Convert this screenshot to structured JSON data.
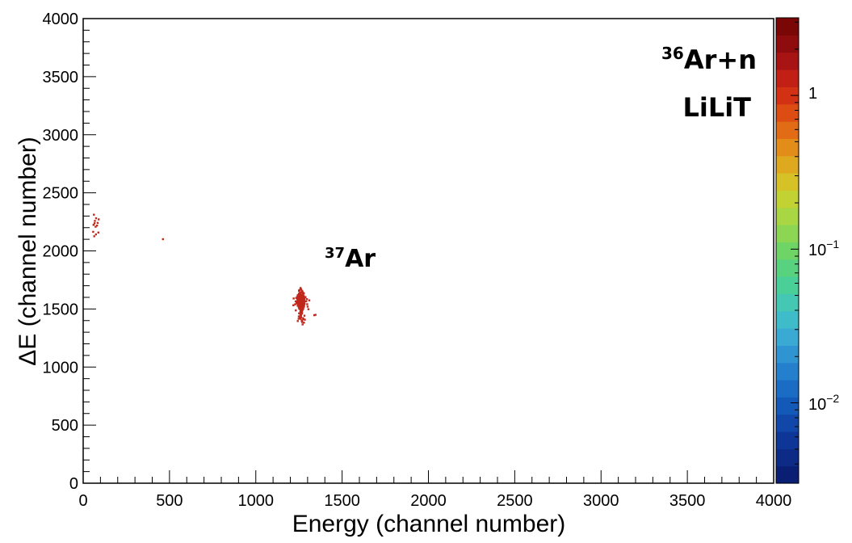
{
  "chart_data": {
    "type": "scatter",
    "title": "",
    "xlabel": "Energy (channel number)",
    "ylabel": "ΔE (channel number)",
    "xlim": [
      0,
      4000
    ],
    "ylim": [
      0,
      4000
    ],
    "x_ticks": [
      "0",
      "500",
      "1000",
      "1500",
      "2000",
      "2500",
      "3000",
      "3500",
      "4000"
    ],
    "y_ticks": [
      "0",
      "500",
      "1000",
      "1500",
      "2000",
      "2500",
      "3000",
      "3500",
      "4000"
    ],
    "grid": false,
    "legend": "none",
    "annotations": {
      "reaction_label": {
        "base": "Ar+n",
        "superscript": "36"
      },
      "facility_label": "LiLiT",
      "peak_label": {
        "base": "Ar",
        "superscript": "37"
      }
    },
    "colorbar": {
      "scale": "log",
      "range": [
        0.003,
        3.2
      ],
      "labels": [
        {
          "text": "1",
          "superscript": ""
        },
        {
          "text": "10",
          "superscript": "−1"
        },
        {
          "text": "10",
          "superscript": "−2"
        }
      ],
      "colors": [
        "#0a1f73",
        "#0c2a86",
        "#0e3697",
        "#1047a8",
        "#1259b8",
        "#1a6cc5",
        "#2480cd",
        "#2f95d2",
        "#3aaad4",
        "#3fbcc9",
        "#44c7b3",
        "#4bcf99",
        "#58d27e",
        "#6fd466",
        "#8dd653",
        "#a9d643",
        "#c3d233",
        "#d6c126",
        "#dea81f",
        "#e28c19",
        "#e26b15",
        "#dd4c13",
        "#d23114",
        "#c21f15",
        "#a81414",
        "#8f0c0e",
        "#7a0606"
      ]
    },
    "series": [
      {
        "marker_color": "#c0281c",
        "points": [
          [
            1258,
            1552
          ],
          [
            1262,
            1578
          ],
          [
            1270,
            1540
          ],
          [
            1247,
            1563
          ],
          [
            1276,
            1598
          ],
          [
            1255,
            1517
          ],
          [
            1265,
            1620
          ],
          [
            1240,
            1589
          ],
          [
            1280,
            1571
          ],
          [
            1250,
            1605
          ],
          [
            1268,
            1498
          ],
          [
            1244,
            1530
          ],
          [
            1273,
            1556
          ],
          [
            1261,
            1641
          ],
          [
            1252,
            1583
          ],
          [
            1278,
            1525
          ],
          [
            1236,
            1548
          ],
          [
            1266,
            1568
          ],
          [
            1257,
            1612
          ],
          [
            1271,
            1492
          ],
          [
            1249,
            1627
          ],
          [
            1283,
            1545
          ],
          [
            1263,
            1594
          ],
          [
            1254,
            1536
          ],
          [
            1242,
            1572
          ],
          [
            1275,
            1631
          ],
          [
            1260,
            1509
          ],
          [
            1269,
            1585
          ],
          [
            1246,
            1558
          ],
          [
            1279,
            1602
          ],
          [
            1256,
            1665
          ],
          [
            1264,
            1482
          ],
          [
            1251,
            1544
          ],
          [
            1272,
            1576
          ],
          [
            1259,
            1521
          ],
          [
            1245,
            1614
          ],
          [
            1281,
            1561
          ],
          [
            1267,
            1650
          ],
          [
            1253,
            1593
          ],
          [
            1274,
            1505
          ],
          [
            1238,
            1566
          ],
          [
            1262,
            1533
          ],
          [
            1270,
            1608
          ],
          [
            1248,
            1579
          ],
          [
            1258,
            1474
          ],
          [
            1277,
            1587
          ],
          [
            1255,
            1639
          ],
          [
            1266,
            1551
          ],
          [
            1243,
            1527
          ],
          [
            1273,
            1620
          ],
          [
            1261,
            1562
          ],
          [
            1252,
            1501
          ],
          [
            1280,
            1534
          ],
          [
            1265,
            1591
          ],
          [
            1250,
            1656
          ],
          [
            1269,
            1515
          ],
          [
            1257,
            1606
          ],
          [
            1276,
            1569
          ],
          [
            1244,
            1595
          ],
          [
            1263,
            1539
          ],
          [
            1254,
            1580
          ],
          [
            1271,
            1645
          ],
          [
            1260,
            1487
          ],
          [
            1247,
            1555
          ],
          [
            1278,
            1611
          ],
          [
            1266,
            1527
          ],
          [
            1256,
            1573
          ],
          [
            1273,
            1597
          ],
          [
            1252,
            1628
          ],
          [
            1264,
            1546
          ],
          [
            1259,
            1681
          ],
          [
            1268,
            1463
          ],
          [
            1245,
            1542
          ],
          [
            1275,
            1560
          ],
          [
            1262,
            1615
          ],
          [
            1249,
            1512
          ],
          [
            1281,
            1583
          ],
          [
            1258,
            1599
          ],
          [
            1267,
            1535
          ],
          [
            1253,
            1565
          ],
          [
            1240,
            1604
          ],
          [
            1272,
            1548
          ],
          [
            1255,
            1523
          ],
          [
            1277,
            1636
          ],
          [
            1261,
            1574
          ],
          [
            1250,
            1589
          ],
          [
            1270,
            1506
          ],
          [
            1264,
            1557
          ],
          [
            1243,
            1619
          ],
          [
            1274,
            1584
          ],
          [
            1257,
            1542
          ],
          [
            1266,
            1566
          ],
          [
            1251,
            1633
          ],
          [
            1279,
            1519
          ],
          [
            1259,
            1595
          ],
          [
            1268,
            1552
          ],
          [
            1246,
            1577
          ],
          [
            1276,
            1607
          ],
          [
            1262,
            1449
          ],
          [
            1254,
            1560
          ],
          [
            1271,
            1586
          ],
          [
            1248,
            1528
          ],
          [
            1263,
            1670
          ],
          [
            1280,
            1571
          ],
          [
            1256,
            1608
          ],
          [
            1269,
            1537
          ],
          [
            1252,
            1591
          ],
          [
            1273,
            1558
          ],
          [
            1260,
            1517
          ],
          [
            1265,
            1623
          ],
          [
            1244,
            1569
          ],
          [
            1277,
            1545
          ],
          [
            1258,
            1580
          ],
          [
            1267,
            1495
          ],
          [
            1250,
            1601
          ],
          [
            1274,
            1636
          ],
          [
            1261,
            1563
          ],
          [
            1255,
            1531
          ],
          [
            1270,
            1575
          ],
          [
            1247,
            1552
          ],
          [
            1264,
            1612
          ],
          [
            1282,
            1588
          ],
          [
            1253,
            1540
          ],
          [
            1268,
            1479
          ],
          [
            1259,
            1596
          ],
          [
            1241,
            1566
          ],
          [
            1276,
            1524
          ],
          [
            1262,
            1644
          ],
          [
            1251,
            1578
          ],
          [
            1272,
            1549
          ],
          [
            1257,
            1511
          ],
          [
            1266,
            1603
          ],
          [
            1249,
            1584
          ],
          [
            1279,
            1563
          ],
          [
            1260,
            1626
          ],
          [
            1254,
            1535
          ],
          [
            1269,
            1571
          ],
          [
            1245,
            1598
          ],
          [
            1275,
            1501
          ],
          [
            1263,
            1556
          ],
          [
            1252,
            1662
          ],
          [
            1270,
            1582
          ],
          [
            1258,
            1547
          ],
          [
            1283,
            1600
          ],
          [
            1265,
            1520
          ],
          [
            1248,
            1567
          ],
          [
            1273,
            1615
          ],
          [
            1256,
            1591
          ],
          [
            1261,
            1469
          ],
          [
            1267,
            1543
          ],
          [
            1243,
            1579
          ],
          [
            1278,
            1634
          ],
          [
            1259,
            1559
          ],
          [
            1250,
            1527
          ],
          [
            1271,
            1593
          ],
          [
            1262,
            1608
          ],
          [
            1254,
            1566
          ],
          [
            1276,
            1538
          ],
          [
            1264,
            1574
          ],
          [
            1247,
            1615
          ],
          [
            1269,
            1656
          ],
          [
            1257,
            1498
          ],
          [
            1281,
            1581
          ],
          [
            1260,
            1550
          ],
          [
            1266,
            1599
          ],
          [
            1253,
            1572
          ],
          [
            1274,
            1528
          ],
          [
            1239,
            1553
          ],
          [
            1263,
            1588
          ],
          [
            1268,
            1621
          ],
          [
            1251,
            1543
          ],
          [
            1277,
            1562
          ],
          [
            1258,
            1606
          ],
          [
            1265,
            1513
          ],
          [
            1246,
            1590
          ],
          [
            1272,
            1575
          ],
          [
            1261,
            1441
          ],
          [
            1255,
            1631
          ],
          [
            1270,
            1556
          ],
          [
            1262,
            1597
          ],
          [
            1260,
            1415
          ],
          [
            1274,
            1421
          ],
          [
            1249,
            1436
          ],
          [
            1279,
            1382
          ],
          [
            1266,
            1402
          ],
          [
            1243,
            1396
          ],
          [
            1282,
            1442
          ],
          [
            1264,
            1455
          ],
          [
            1255,
            1427
          ],
          [
            1271,
            1367
          ],
          [
            1269,
            1388
          ],
          [
            1251,
            1462
          ],
          [
            1276,
            1410
          ],
          [
            1262,
            1429
          ],
          [
            1284,
            1408
          ],
          [
            1258,
            1450
          ],
          [
            1248,
            1416
          ],
          [
            1267,
            1395
          ],
          [
            1292,
            1566
          ],
          [
            1298,
            1541
          ],
          [
            1288,
            1602
          ],
          [
            1231,
            1565
          ],
          [
            1296,
            1585
          ],
          [
            1228,
            1540
          ],
          [
            1300,
            1520
          ],
          [
            1234,
            1595
          ],
          [
            1346,
            1450
          ],
          [
            1339,
            1446
          ],
          [
            1218,
            1532
          ],
          [
            1310,
            1574
          ],
          [
            1219,
            1590
          ],
          [
            1305,
            1498
          ],
          [
            1232,
            1488
          ],
          [
            62,
            2312
          ],
          [
            75,
            2281
          ],
          [
            68,
            2258
          ],
          [
            84,
            2241
          ],
          [
            60,
            2224
          ],
          [
            72,
            2208
          ],
          [
            90,
            2271
          ],
          [
            66,
            2238
          ],
          [
            80,
            2218
          ],
          [
            58,
            2164
          ],
          [
            74,
            2142
          ],
          [
            88,
            2158
          ],
          [
            64,
            2126
          ],
          [
            462,
            2101
          ]
        ]
      }
    ]
  }
}
